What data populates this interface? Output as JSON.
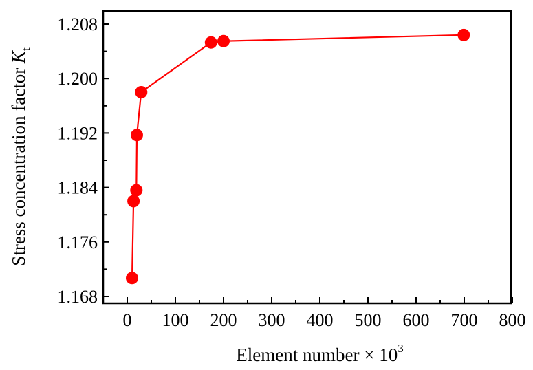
{
  "chart_data": {
    "type": "line",
    "title": "",
    "xlabel": "Element number × 10^3",
    "xlabel_main": "Element number × 10",
    "xlabel_sup": "3",
    "ylabel": "Stress concentration factor K_t",
    "ylabel_main": "Stress concentration factor ",
    "ylabel_var": "K",
    "ylabel_sub": "t",
    "xlim": [
      -50,
      800
    ],
    "ylim": [
      1.166,
      1.2096
    ],
    "xticks": [
      0,
      100,
      200,
      300,
      400,
      500,
      600,
      700,
      800
    ],
    "yticks": [
      1.168,
      1.176,
      1.184,
      1.192,
      1.2,
      1.208
    ],
    "ytick_labels": [
      "1.168",
      "1.176",
      "1.184",
      "1.192",
      "1.200",
      "1.208"
    ],
    "grid": false,
    "legend": null,
    "series": [
      {
        "name": "Kt",
        "color": "#ff0000",
        "marker": "circle",
        "x": [
          10,
          13,
          19,
          20,
          29,
          174,
          200,
          699
        ],
        "y": [
          1.1707,
          1.182,
          1.1836,
          1.1917,
          1.198,
          1.2053,
          1.2055,
          1.2064
        ]
      }
    ]
  }
}
